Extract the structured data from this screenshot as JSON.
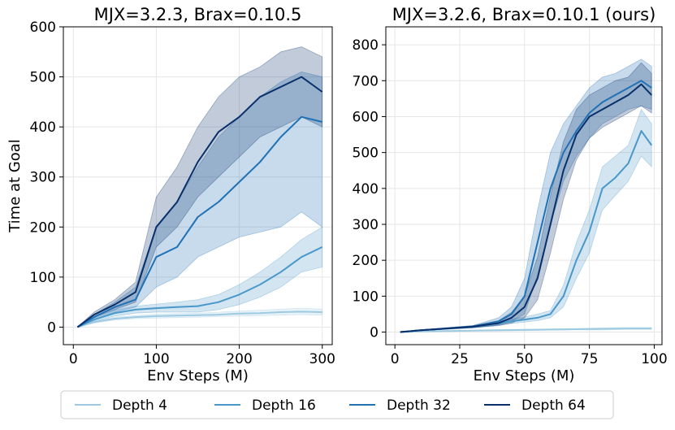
{
  "chart_data": [
    {
      "type": "line",
      "title": "MJX=3.2.3, Brax=0.10.5",
      "xlabel": "Env Steps (M)",
      "ylabel": "Time at Goal",
      "xlim": [
        -12,
        312
      ],
      "ylim": [
        -35,
        600
      ],
      "xticks": [
        0,
        100,
        200,
        300
      ],
      "yticks": [
        0,
        100,
        200,
        300,
        400,
        500,
        600
      ],
      "grid": true,
      "series": [
        {
          "name": "Depth 4",
          "x": [
            5,
            25,
            50,
            75,
            100,
            125,
            150,
            175,
            200,
            225,
            250,
            275,
            300
          ],
          "values": [
            0,
            10,
            17,
            20,
            22,
            23,
            24,
            25,
            27,
            28,
            30,
            31,
            30
          ],
          "lower": [
            0,
            8,
            14,
            17,
            18,
            19,
            20,
            21,
            22,
            23,
            24,
            25,
            24
          ],
          "upper": [
            0,
            12,
            20,
            23,
            26,
            27,
            28,
            30,
            32,
            34,
            36,
            38,
            36
          ]
        },
        {
          "name": "Depth 16",
          "x": [
            5,
            25,
            50,
            75,
            100,
            125,
            150,
            175,
            200,
            225,
            250,
            275,
            300
          ],
          "values": [
            0,
            15,
            28,
            35,
            38,
            40,
            42,
            50,
            65,
            85,
            110,
            140,
            160
          ],
          "lower": [
            0,
            12,
            22,
            28,
            30,
            30,
            30,
            35,
            45,
            60,
            80,
            110,
            120
          ],
          "upper": [
            0,
            18,
            34,
            42,
            46,
            50,
            55,
            65,
            85,
            110,
            140,
            175,
            200
          ]
        },
        {
          "name": "Depth 32",
          "x": [
            5,
            25,
            50,
            75,
            100,
            125,
            150,
            175,
            200,
            225,
            250,
            275,
            300
          ],
          "values": [
            0,
            20,
            40,
            55,
            140,
            160,
            220,
            250,
            290,
            330,
            380,
            420,
            410
          ],
          "lower": [
            0,
            15,
            30,
            40,
            80,
            100,
            140,
            160,
            180,
            190,
            200,
            230,
            200
          ],
          "upper": [
            0,
            25,
            50,
            80,
            200,
            250,
            320,
            380,
            420,
            460,
            490,
            510,
            500
          ]
        },
        {
          "name": "Depth 64",
          "x": [
            5,
            25,
            50,
            75,
            100,
            125,
            150,
            175,
            200,
            225,
            250,
            275,
            300
          ],
          "values": [
            0,
            25,
            45,
            70,
            200,
            250,
            330,
            390,
            420,
            460,
            480,
            500,
            470
          ],
          "lower": [
            0,
            20,
            35,
            50,
            160,
            200,
            260,
            300,
            340,
            380,
            400,
            420,
            400
          ],
          "upper": [
            0,
            30,
            55,
            90,
            260,
            320,
            400,
            460,
            500,
            520,
            550,
            560,
            540
          ]
        }
      ]
    },
    {
      "type": "line",
      "title": "MJX=3.2.6, Brax=0.10.1 (ours)",
      "xlabel": "Env Steps (M)",
      "ylabel": "",
      "xlim": [
        -3.5,
        103
      ],
      "ylim": [
        -35,
        850
      ],
      "xticks": [
        0,
        25,
        50,
        75,
        100
      ],
      "yticks": [
        0,
        100,
        200,
        300,
        400,
        500,
        600,
        700,
        800
      ],
      "grid": true,
      "series": [
        {
          "name": "Depth 4",
          "x": [
            2,
            10,
            20,
            30,
            40,
            50,
            60,
            70,
            80,
            90,
            99
          ],
          "values": [
            0,
            2,
            3,
            4,
            5,
            6,
            7,
            8,
            9,
            10,
            10
          ],
          "lower": [
            0,
            1,
            2,
            3,
            3,
            4,
            5,
            6,
            6,
            7,
            7
          ],
          "upper": [
            0,
            3,
            4,
            5,
            7,
            8,
            9,
            10,
            12,
            13,
            13
          ]
        },
        {
          "name": "Depth 16",
          "x": [
            2,
            10,
            20,
            30,
            40,
            50,
            55,
            60,
            65,
            70,
            75,
            80,
            85,
            90,
            95,
            99
          ],
          "values": [
            0,
            5,
            10,
            15,
            25,
            35,
            40,
            50,
            100,
            200,
            280,
            400,
            430,
            470,
            560,
            520
          ],
          "lower": [
            0,
            4,
            8,
            12,
            20,
            28,
            32,
            40,
            70,
            150,
            220,
            340,
            380,
            420,
            490,
            460
          ],
          "upper": [
            0,
            6,
            12,
            18,
            30,
            42,
            50,
            60,
            130,
            250,
            340,
            460,
            490,
            520,
            620,
            580
          ]
        },
        {
          "name": "Depth 32",
          "x": [
            2,
            10,
            20,
            30,
            40,
            45,
            50,
            55,
            60,
            65,
            70,
            75,
            80,
            85,
            90,
            95,
            99
          ],
          "values": [
            0,
            5,
            10,
            15,
            30,
            50,
            100,
            250,
            400,
            500,
            560,
            610,
            640,
            660,
            680,
            700,
            680
          ],
          "lower": [
            0,
            4,
            8,
            12,
            20,
            30,
            50,
            160,
            300,
            420,
            490,
            540,
            580,
            600,
            620,
            630,
            620
          ],
          "upper": [
            0,
            6,
            12,
            18,
            40,
            70,
            150,
            340,
            500,
            580,
            630,
            680,
            710,
            720,
            740,
            760,
            740
          ]
        },
        {
          "name": "Depth 64",
          "x": [
            2,
            10,
            20,
            30,
            40,
            45,
            50,
            55,
            60,
            65,
            70,
            75,
            80,
            85,
            90,
            95,
            99
          ],
          "values": [
            0,
            5,
            10,
            15,
            25,
            40,
            70,
            150,
            300,
            450,
            550,
            600,
            620,
            640,
            660,
            690,
            660
          ],
          "lower": [
            0,
            4,
            8,
            12,
            18,
            25,
            40,
            90,
            220,
            370,
            480,
            540,
            570,
            590,
            610,
            630,
            610
          ],
          "upper": [
            0,
            6,
            12,
            18,
            32,
            55,
            100,
            210,
            380,
            530,
            620,
            660,
            680,
            700,
            710,
            750,
            720
          ]
        }
      ]
    }
  ],
  "legend": {
    "placement": "bottom",
    "items": [
      {
        "label": "Depth 4",
        "color": "#9ecae1"
      },
      {
        "label": "Depth 16",
        "color": "#4a98c9"
      },
      {
        "label": "Depth 32",
        "color": "#2171b5"
      },
      {
        "label": "Depth 64",
        "color": "#08306b"
      }
    ]
  }
}
